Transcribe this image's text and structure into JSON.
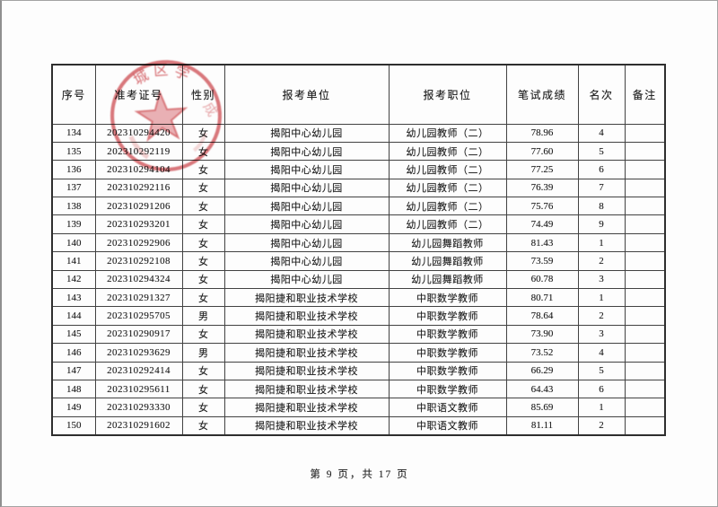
{
  "document": {
    "footer": "第 9 页，共 17 页"
  },
  "stamp": {
    "color": "#c9373d",
    "center_symbol": "five-pointed-star",
    "arc_text_top": "城区学",
    "arc_text_side": "成"
  },
  "table": {
    "headers": [
      "序号",
      "准考证号",
      "性别",
      "报考单位",
      "报考职位",
      "笔试成绩",
      "名次",
      "备注"
    ],
    "rows": [
      {
        "no": "134",
        "id": "202310294420",
        "gender": "女",
        "unit": "揭阳中心幼儿园",
        "position": "幼儿园教师（二）",
        "score": "78.96",
        "rank": "4",
        "remark": ""
      },
      {
        "no": "135",
        "id": "202310292119",
        "gender": "女",
        "unit": "揭阳中心幼儿园",
        "position": "幼儿园教师（二）",
        "score": "77.60",
        "rank": "5",
        "remark": ""
      },
      {
        "no": "136",
        "id": "202310294104",
        "gender": "女",
        "unit": "揭阳中心幼儿园",
        "position": "幼儿园教师（二）",
        "score": "77.25",
        "rank": "6",
        "remark": ""
      },
      {
        "no": "137",
        "id": "202310292116",
        "gender": "女",
        "unit": "揭阳中心幼儿园",
        "position": "幼儿园教师（二）",
        "score": "76.39",
        "rank": "7",
        "remark": ""
      },
      {
        "no": "138",
        "id": "202310291206",
        "gender": "女",
        "unit": "揭阳中心幼儿园",
        "position": "幼儿园教师（二）",
        "score": "75.76",
        "rank": "8",
        "remark": ""
      },
      {
        "no": "139",
        "id": "202310293201",
        "gender": "女",
        "unit": "揭阳中心幼儿园",
        "position": "幼儿园教师（二）",
        "score": "74.49",
        "rank": "9",
        "remark": ""
      },
      {
        "no": "140",
        "id": "202310292906",
        "gender": "女",
        "unit": "揭阳中心幼儿园",
        "position": "幼儿园舞蹈教师",
        "score": "81.43",
        "rank": "1",
        "remark": ""
      },
      {
        "no": "141",
        "id": "202310292108",
        "gender": "女",
        "unit": "揭阳中心幼儿园",
        "position": "幼儿园舞蹈教师",
        "score": "73.59",
        "rank": "2",
        "remark": ""
      },
      {
        "no": "142",
        "id": "202310294324",
        "gender": "女",
        "unit": "揭阳中心幼儿园",
        "position": "幼儿园舞蹈教师",
        "score": "60.78",
        "rank": "3",
        "remark": ""
      },
      {
        "no": "143",
        "id": "202310291327",
        "gender": "女",
        "unit": "揭阳捷和职业技术学校",
        "position": "中职数学教师",
        "score": "80.71",
        "rank": "1",
        "remark": ""
      },
      {
        "no": "144",
        "id": "202310295705",
        "gender": "男",
        "unit": "揭阳捷和职业技术学校",
        "position": "中职数学教师",
        "score": "78.64",
        "rank": "2",
        "remark": ""
      },
      {
        "no": "145",
        "id": "202310290917",
        "gender": "女",
        "unit": "揭阳捷和职业技术学校",
        "position": "中职数学教师",
        "score": "73.90",
        "rank": "3",
        "remark": ""
      },
      {
        "no": "146",
        "id": "202310293629",
        "gender": "男",
        "unit": "揭阳捷和职业技术学校",
        "position": "中职数学教师",
        "score": "73.52",
        "rank": "4",
        "remark": ""
      },
      {
        "no": "147",
        "id": "202310292414",
        "gender": "女",
        "unit": "揭阳捷和职业技术学校",
        "position": "中职数学教师",
        "score": "66.29",
        "rank": "5",
        "remark": ""
      },
      {
        "no": "148",
        "id": "202310295611",
        "gender": "女",
        "unit": "揭阳捷和职业技术学校",
        "position": "中职数学教师",
        "score": "64.43",
        "rank": "6",
        "remark": ""
      },
      {
        "no": "149",
        "id": "202310293330",
        "gender": "女",
        "unit": "揭阳捷和职业技术学校",
        "position": "中职语文教师",
        "score": "85.69",
        "rank": "1",
        "remark": ""
      },
      {
        "no": "150",
        "id": "202310291602",
        "gender": "女",
        "unit": "揭阳捷和职业技术学校",
        "position": "中职语文教师",
        "score": "81.11",
        "rank": "2",
        "remark": ""
      }
    ]
  }
}
